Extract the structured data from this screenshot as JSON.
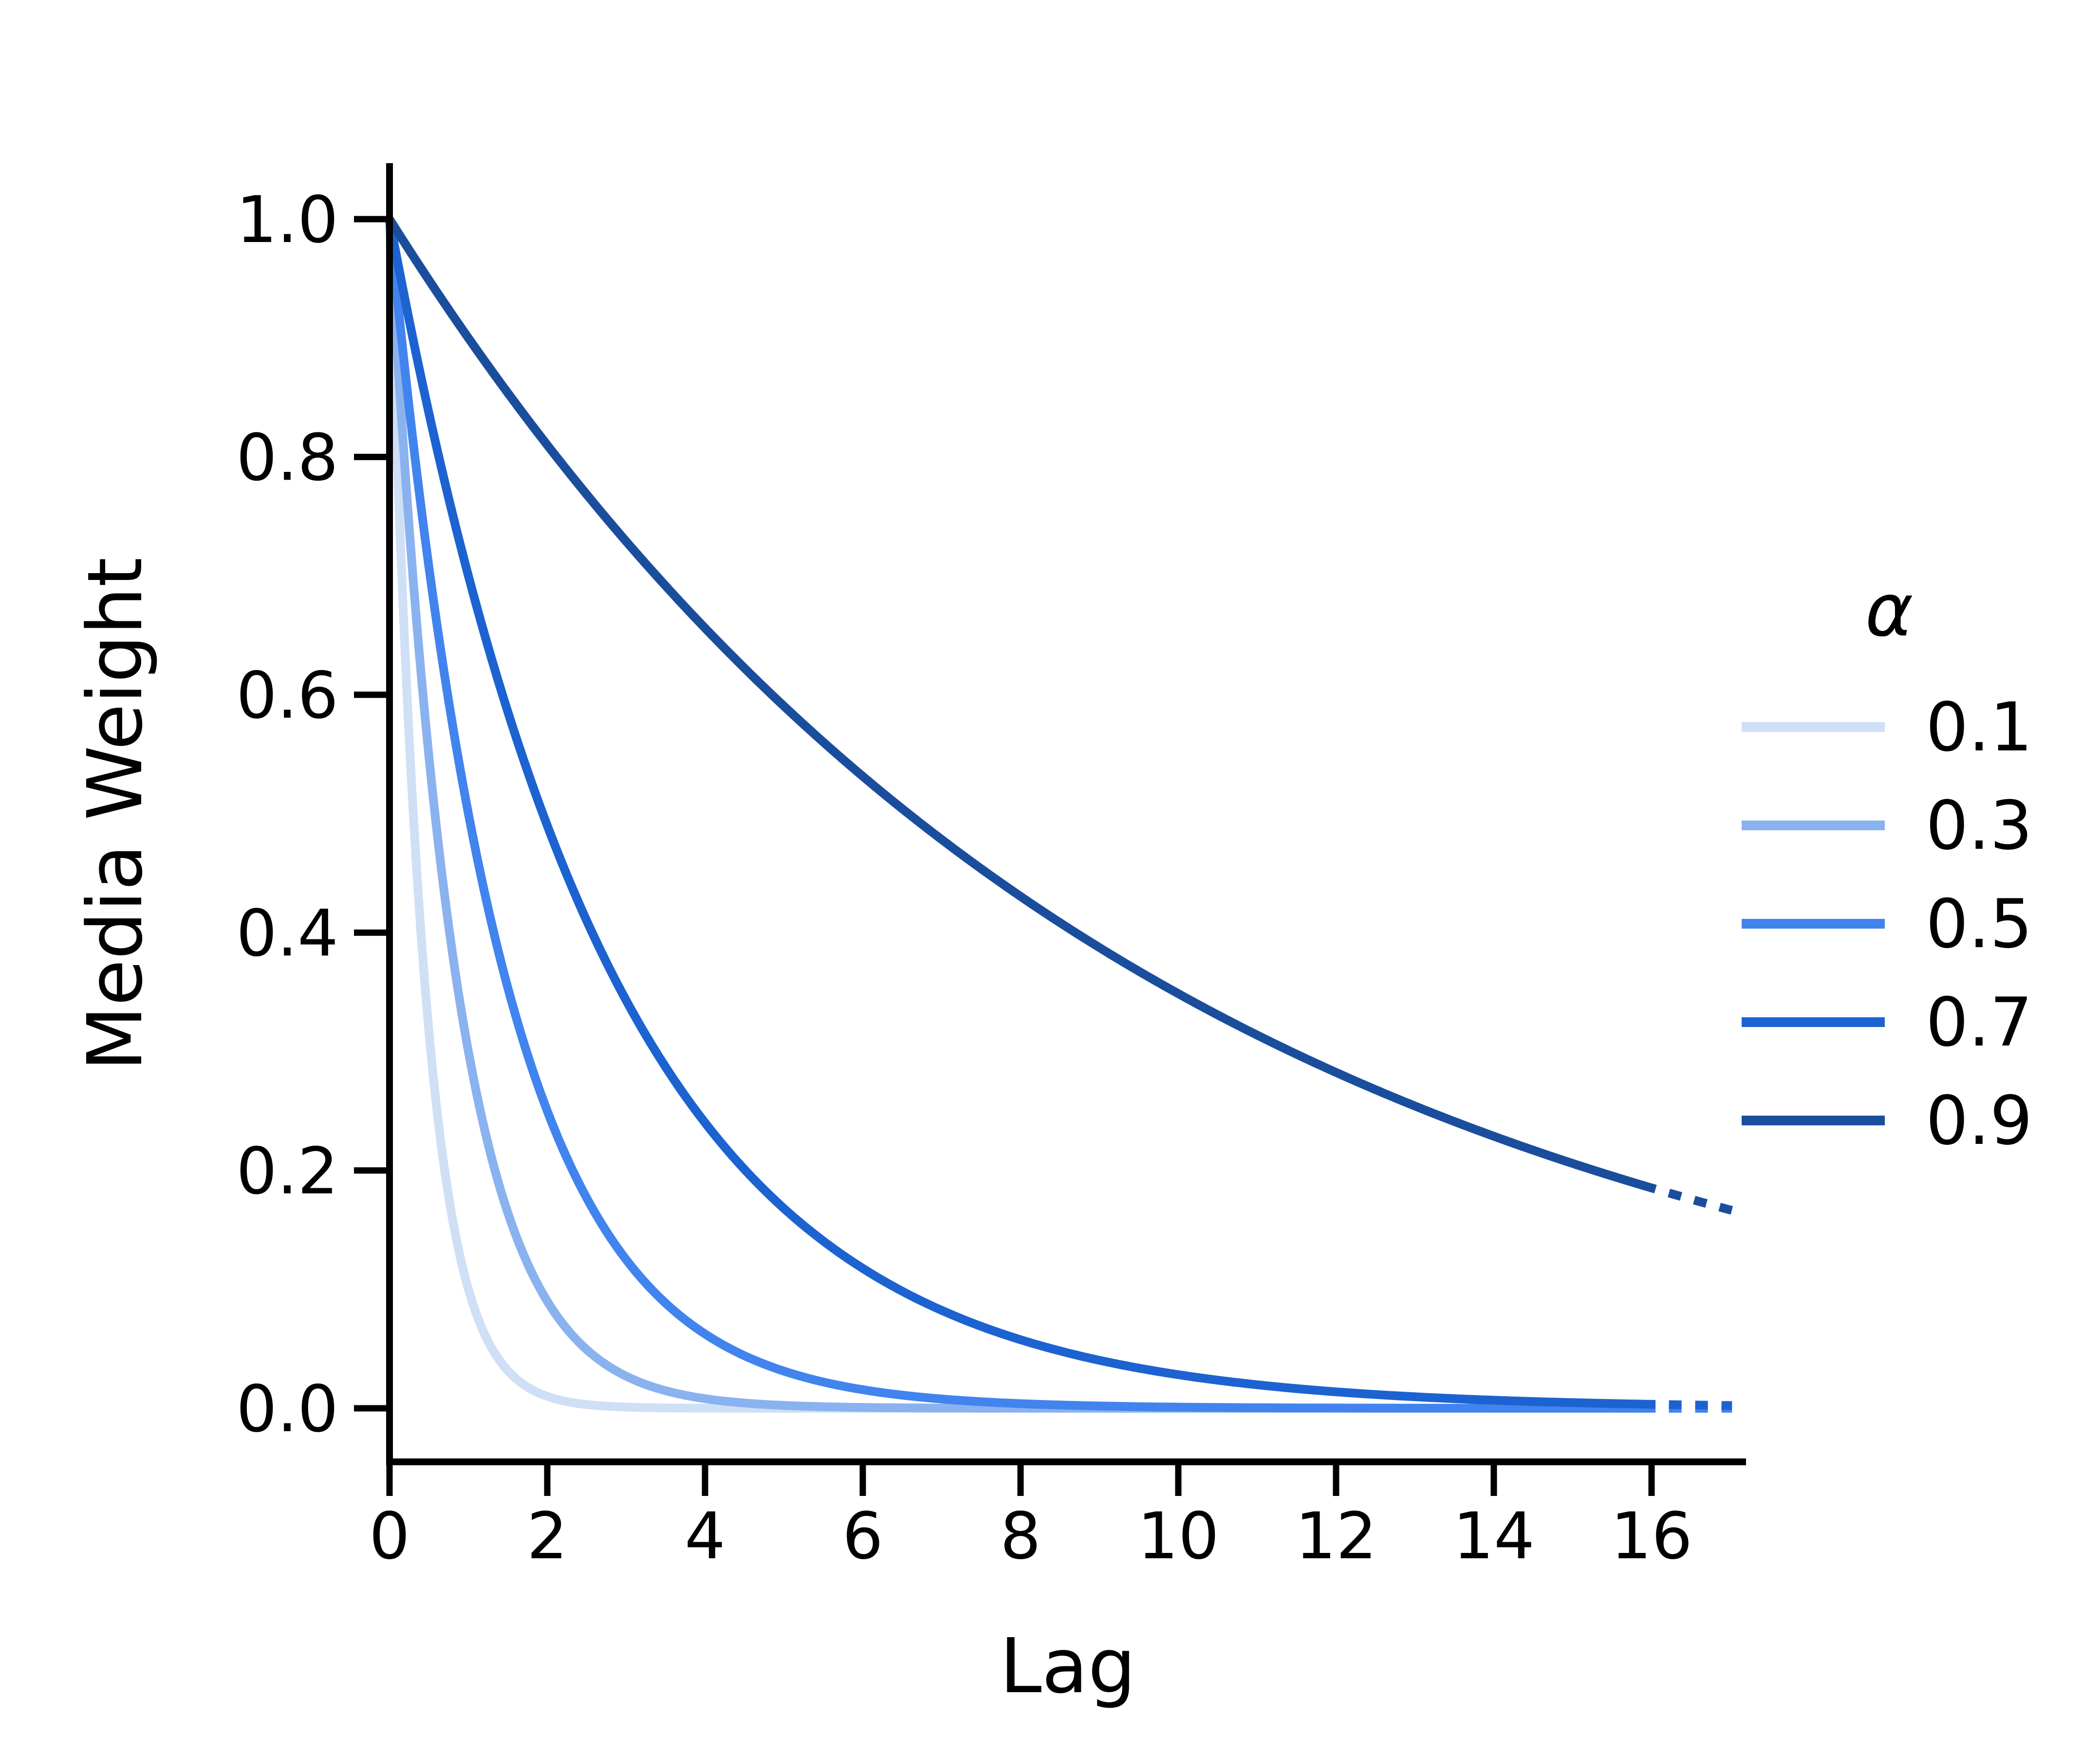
{
  "chart_data": {
    "type": "line",
    "title": "",
    "xlabel": "Lag",
    "ylabel": "Media Weight",
    "x_ticks": [
      0,
      2,
      4,
      6,
      8,
      10,
      12,
      14,
      16
    ],
    "x_tick_labels": [
      "0",
      "2",
      "4",
      "6",
      "8",
      "10",
      "12",
      "14",
      "16"
    ],
    "y_ticks": [
      0.0,
      0.2,
      0.4,
      0.6,
      0.8,
      1.0
    ],
    "y_tick_labels": [
      "0.0",
      "0.2",
      "0.4",
      "0.6",
      "0.8",
      "1.0"
    ],
    "xlim": [
      0,
      17.2
    ],
    "ylim": [
      -0.045,
      1.047
    ],
    "grid": false,
    "legend": {
      "title": "α",
      "position": "center-right",
      "entries": [
        {
          "label": "0.1",
          "color": "#cfdff6"
        },
        {
          "label": "0.3",
          "color": "#8ab2ef"
        },
        {
          "label": "0.5",
          "color": "#4284ee"
        },
        {
          "label": "0.7",
          "color": "#1c63d1"
        },
        {
          "label": "0.9",
          "color": "#1a4e9d"
        }
      ]
    },
    "function": "weight = alpha ^ lag",
    "solid_range": [
      0,
      16.05
    ],
    "dotted_continuation_range": [
      16.22,
      17.06
    ],
    "x": [
      0,
      1,
      2,
      3,
      4,
      5,
      6,
      7,
      8,
      9,
      10,
      11,
      12,
      13,
      14,
      15,
      16,
      17
    ],
    "series": [
      {
        "name": "0.1",
        "alpha": 0.1,
        "color": "#cfdff6",
        "values": [
          1,
          0.1,
          0.01,
          0.001,
          0.0001,
          0,
          0,
          0,
          0,
          0,
          0,
          0,
          0,
          0,
          0,
          0,
          0,
          0
        ]
      },
      {
        "name": "0.3",
        "alpha": 0.3,
        "color": "#8ab2ef",
        "values": [
          1,
          0.3,
          0.09,
          0.027,
          0.0081,
          0.0024,
          0.0007,
          0.0002,
          0.0001,
          0,
          0,
          0,
          0,
          0,
          0,
          0,
          0,
          0
        ]
      },
      {
        "name": "0.5",
        "alpha": 0.5,
        "color": "#4284ee",
        "values": [
          1,
          0.5,
          0.25,
          0.125,
          0.0625,
          0.0313,
          0.0156,
          0.0078,
          0.0039,
          0.002,
          0.001,
          0.0005,
          0.0002,
          0.0001,
          0.0001,
          0,
          0,
          0
        ]
      },
      {
        "name": "0.7",
        "alpha": 0.7,
        "color": "#1c63d1",
        "values": [
          1,
          0.7,
          0.49,
          0.343,
          0.2401,
          0.1681,
          0.1176,
          0.0824,
          0.0576,
          0.0404,
          0.0282,
          0.0198,
          0.0138,
          0.0097,
          0.0068,
          0.0047,
          0.0033,
          0.0023
        ]
      },
      {
        "name": "0.9",
        "alpha": 0.9,
        "color": "#1a4e9d",
        "values": [
          1,
          0.9,
          0.81,
          0.729,
          0.6561,
          0.5905,
          0.5314,
          0.4783,
          0.4305,
          0.3874,
          0.3487,
          0.3138,
          0.2824,
          0.2542,
          0.2288,
          0.2059,
          0.1853,
          0.1668
        ]
      }
    ]
  }
}
